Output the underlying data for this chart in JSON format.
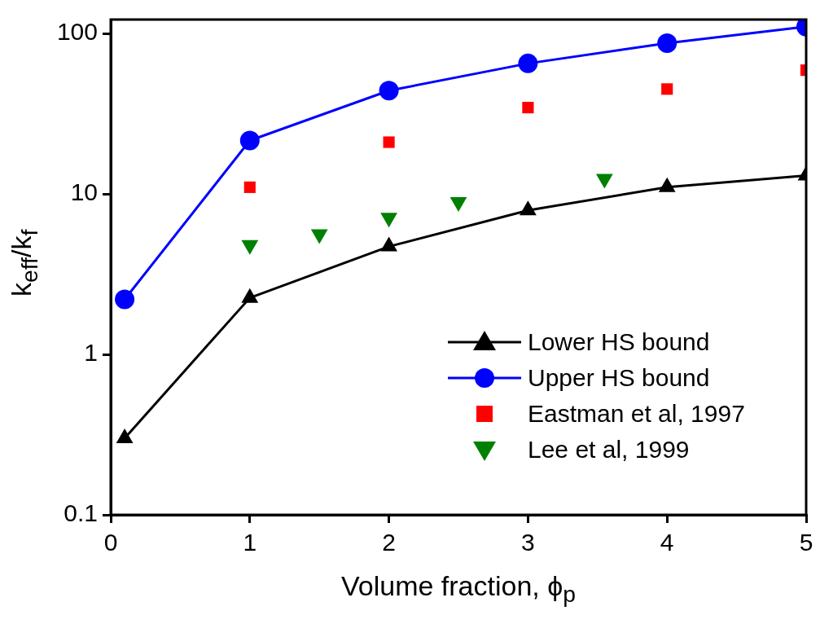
{
  "chart_data": {
    "type": "line",
    "xlabel": "Volume fraction, ϕ$_{p}$",
    "ylabel": "k$_{eff}$/k$_{f}$",
    "log": "y",
    "xlim": [
      0,
      5
    ],
    "xticks": [
      0,
      1,
      2,
      3,
      4,
      5
    ],
    "ylim": [
      0.1,
      122
    ],
    "yticks": [
      0.1,
      1,
      10,
      100
    ],
    "grid": false,
    "legend": "bottom right",
    "series": [
      {
        "name": "Lower HS bound",
        "marker": "triangle",
        "color": "#000000",
        "x": [
          0.1,
          1,
          2,
          3,
          4,
          5
        ],
        "values": [
          0.3,
          2.25,
          4.7,
          7.9,
          11,
          13
        ]
      },
      {
        "name": "Upper HS bound",
        "marker": "circle",
        "color": "#0000ff",
        "x": [
          0.1,
          1,
          2,
          3,
          4,
          5
        ],
        "values": [
          2.2,
          21.5,
          44,
          65,
          87,
          110
        ]
      },
      {
        "name": "Eastman et al, 1997",
        "type": "scatter",
        "marker": "square",
        "color": "#ff0000",
        "x": [
          1,
          2,
          3,
          4,
          5
        ],
        "values": [
          11,
          21,
          34.5,
          45,
          59
        ]
      },
      {
        "name": "Lee et al, 1999",
        "type": "scatter",
        "marker": "triangle-down",
        "color": "#008000",
        "x": [
          1,
          1.5,
          2,
          2.5,
          3.55
        ],
        "values": [
          4.8,
          5.6,
          7.1,
          8.9,
          12.4
        ]
      }
    ]
  }
}
